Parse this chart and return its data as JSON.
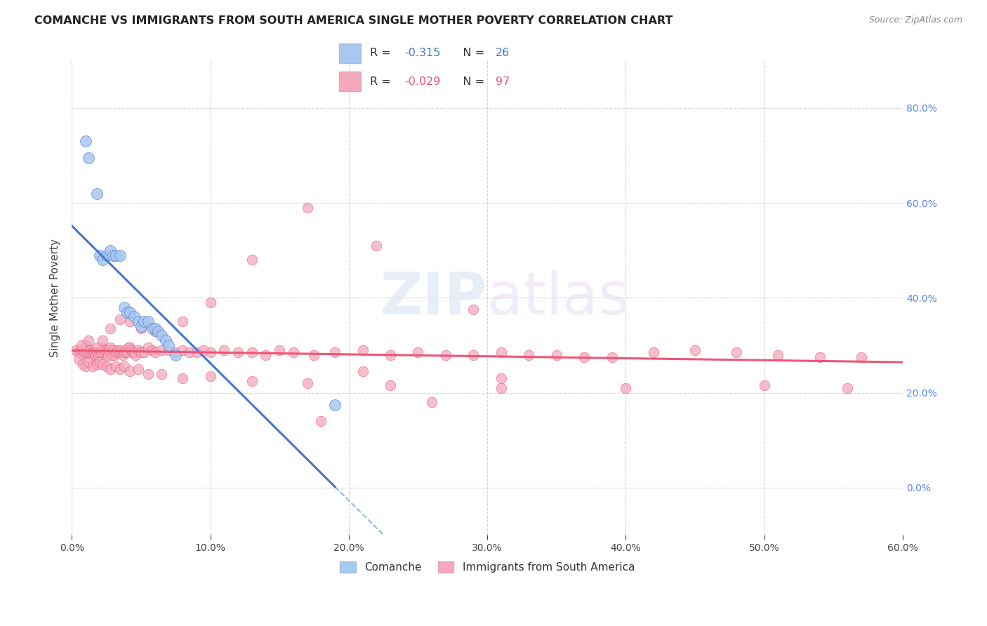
{
  "title": "COMANCHE VS IMMIGRANTS FROM SOUTH AMERICA SINGLE MOTHER POVERTY CORRELATION CHART",
  "source": "Source: ZipAtlas.com",
  "ylabel": "Single Mother Poverty",
  "legend_label_1": "Comanche",
  "legend_label_2": "Immigrants from South America",
  "r1": -0.315,
  "n1": 26,
  "r2": -0.029,
  "n2": 97,
  "color1": "#A8C8F0",
  "color2": "#F4A8BC",
  "line1_color": "#4477CC",
  "line2_color": "#EE5577",
  "xlim": [
    0.0,
    0.6
  ],
  "ylim": [
    -0.1,
    0.9
  ],
  "comanche_x": [
    0.01,
    0.012,
    0.018,
    0.02,
    0.022,
    0.025,
    0.028,
    0.03,
    0.032,
    0.035,
    0.038,
    0.04,
    0.042,
    0.045,
    0.048,
    0.05,
    0.052,
    0.055,
    0.058,
    0.06,
    0.062,
    0.065,
    0.068,
    0.07,
    0.075,
    0.19
  ],
  "comanche_y": [
    0.73,
    0.695,
    0.62,
    0.49,
    0.48,
    0.49,
    0.5,
    0.49,
    0.49,
    0.49,
    0.38,
    0.37,
    0.37,
    0.36,
    0.35,
    0.34,
    0.35,
    0.35,
    0.335,
    0.335,
    0.33,
    0.32,
    0.31,
    0.3,
    0.28,
    0.175
  ],
  "immigrants_x": [
    0.003,
    0.005,
    0.006,
    0.007,
    0.008,
    0.009,
    0.01,
    0.01,
    0.011,
    0.012,
    0.013,
    0.014,
    0.015,
    0.016,
    0.017,
    0.018,
    0.019,
    0.02,
    0.021,
    0.022,
    0.023,
    0.024,
    0.025,
    0.026,
    0.027,
    0.028,
    0.029,
    0.03,
    0.031,
    0.032,
    0.033,
    0.034,
    0.035,
    0.036,
    0.037,
    0.038,
    0.039,
    0.04,
    0.041,
    0.042,
    0.043,
    0.044,
    0.045,
    0.046,
    0.048,
    0.05,
    0.052,
    0.055,
    0.058,
    0.06,
    0.065,
    0.07,
    0.075,
    0.08,
    0.085,
    0.09,
    0.095,
    0.1,
    0.11,
    0.12,
    0.13,
    0.14,
    0.15,
    0.16,
    0.175,
    0.19,
    0.21,
    0.23,
    0.25,
    0.27,
    0.29,
    0.31,
    0.33,
    0.35,
    0.37,
    0.39,
    0.42,
    0.45,
    0.48,
    0.51,
    0.54,
    0.57,
    0.007,
    0.012,
    0.018,
    0.022,
    0.028,
    0.035,
    0.042,
    0.05,
    0.06,
    0.08,
    0.1,
    0.13,
    0.17,
    0.22,
    0.29
  ],
  "immigrants_y": [
    0.29,
    0.285,
    0.29,
    0.285,
    0.28,
    0.285,
    0.3,
    0.285,
    0.29,
    0.285,
    0.29,
    0.28,
    0.285,
    0.285,
    0.28,
    0.285,
    0.28,
    0.285,
    0.285,
    0.295,
    0.285,
    0.29,
    0.285,
    0.28,
    0.29,
    0.295,
    0.28,
    0.29,
    0.28,
    0.285,
    0.29,
    0.285,
    0.29,
    0.285,
    0.28,
    0.285,
    0.29,
    0.285,
    0.295,
    0.295,
    0.29,
    0.285,
    0.285,
    0.28,
    0.29,
    0.285,
    0.285,
    0.295,
    0.29,
    0.285,
    0.29,
    0.29,
    0.285,
    0.29,
    0.285,
    0.285,
    0.29,
    0.285,
    0.29,
    0.285,
    0.285,
    0.28,
    0.29,
    0.285,
    0.28,
    0.285,
    0.29,
    0.28,
    0.285,
    0.28,
    0.28,
    0.285,
    0.28,
    0.28,
    0.275,
    0.275,
    0.285,
    0.29,
    0.285,
    0.28,
    0.275,
    0.275,
    0.3,
    0.31,
    0.295,
    0.31,
    0.335,
    0.355,
    0.35,
    0.335,
    0.33,
    0.35,
    0.39,
    0.48,
    0.59,
    0.51,
    0.375
  ],
  "extra_pink_points_x": [
    0.005,
    0.008,
    0.01,
    0.012,
    0.015,
    0.018,
    0.02,
    0.022,
    0.025,
    0.028,
    0.032,
    0.035,
    0.038,
    0.042,
    0.048,
    0.055,
    0.065,
    0.08,
    0.1,
    0.13,
    0.17,
    0.23,
    0.31,
    0.4,
    0.5,
    0.56,
    0.21,
    0.31,
    0.26,
    0.18
  ],
  "extra_pink_points_y": [
    0.27,
    0.26,
    0.255,
    0.265,
    0.255,
    0.26,
    0.265,
    0.26,
    0.255,
    0.25,
    0.255,
    0.25,
    0.255,
    0.245,
    0.25,
    0.24,
    0.24,
    0.23,
    0.235,
    0.225,
    0.22,
    0.215,
    0.21,
    0.21,
    0.215,
    0.21,
    0.245,
    0.23,
    0.18,
    0.14
  ]
}
